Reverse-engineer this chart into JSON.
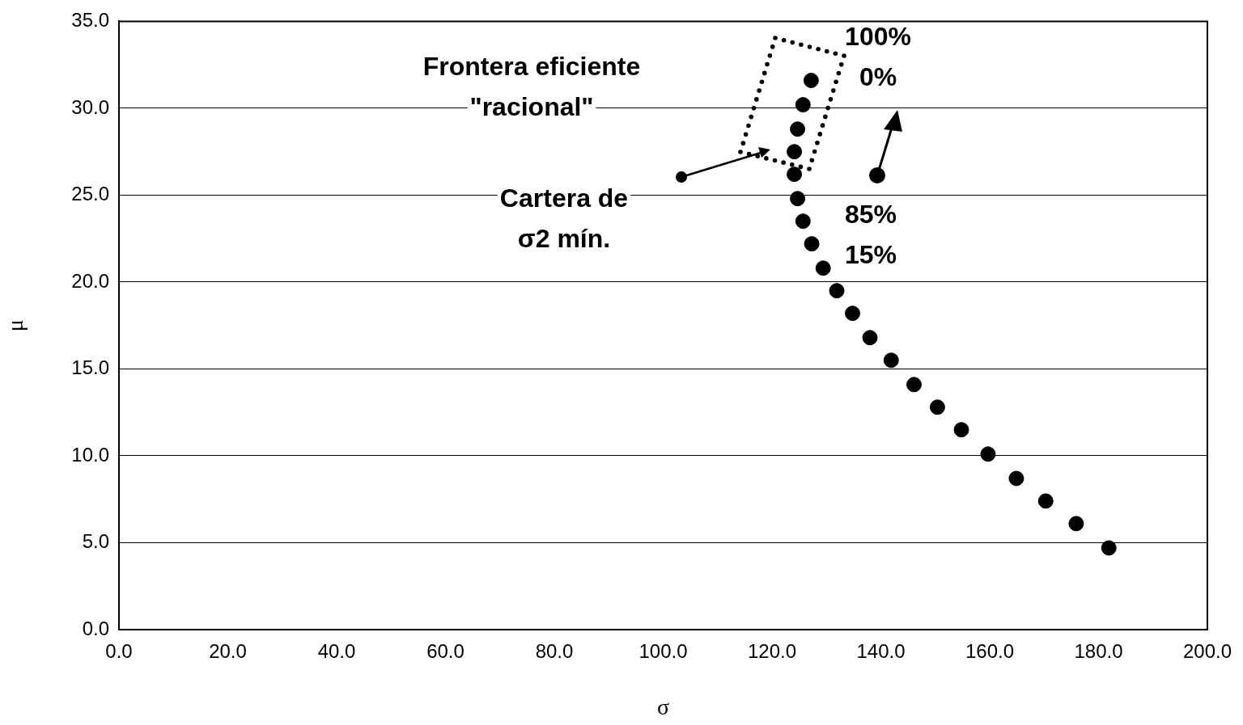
{
  "chart_data": {
    "type": "scatter",
    "xlabel": "σ",
    "ylabel": "μ",
    "x": [
      127.2,
      125.7,
      124.7,
      124.1,
      124.1,
      124.7,
      125.7,
      127.3,
      129.4,
      131.9,
      134.8,
      138.0,
      141.9,
      146.1,
      150.4,
      154.8,
      159.7,
      164.9,
      170.3,
      175.9,
      181.9
    ],
    "series": [
      {
        "color": "#000000",
        "values": [
          31.6,
          30.2,
          28.8,
          27.5,
          26.2,
          24.8,
          23.5,
          22.2,
          20.8,
          19.5,
          18.2,
          16.8,
          15.5,
          14.1,
          12.8,
          11.5,
          10.1,
          8.7,
          7.4,
          6.1,
          4.7
        ]
      }
    ],
    "xlim": [
      0,
      200
    ],
    "xticks": [
      {
        "value": 0,
        "label": "0.0"
      },
      {
        "value": 20,
        "label": "20.0"
      },
      {
        "value": 40,
        "label": "40.0"
      },
      {
        "value": 60,
        "label": "60.0"
      },
      {
        "value": 80,
        "label": "80.0"
      },
      {
        "value": 100,
        "label": "100.0"
      },
      {
        "value": 120,
        "label": "120.0"
      },
      {
        "value": 140,
        "label": "140.0"
      },
      {
        "value": 160,
        "label": "160.0"
      },
      {
        "value": 180,
        "label": "180.0"
      },
      {
        "value": 200,
        "label": "200.0"
      }
    ],
    "ylim": [
      0,
      35
    ],
    "yticks": [
      {
        "value": 0,
        "label": "0.0"
      },
      {
        "value": 5,
        "label": "5.0"
      },
      {
        "value": 10,
        "label": "10.0"
      },
      {
        "value": 15,
        "label": "15.0"
      },
      {
        "value": 20,
        "label": "20.0"
      },
      {
        "value": 25,
        "label": "25.0"
      },
      {
        "value": 30,
        "label": "30.0"
      },
      {
        "value": 35,
        "label": "35.0"
      }
    ],
    "grid": "y",
    "marker": "circle",
    "legend": false,
    "annotations": [
      "Frontera eficiente\n\"racional\"",
      "Cartera de\nσ2 mín.",
      "100%\n0%",
      "85%\n15%"
    ]
  }
}
